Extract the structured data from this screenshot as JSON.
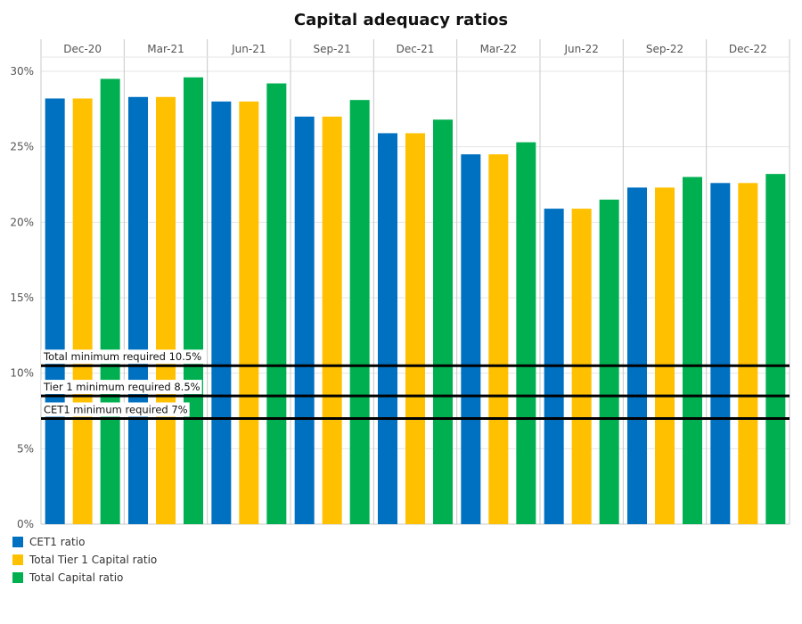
{
  "colors": {
    "cet1": "#0070c0",
    "tier1": "#ffc000",
    "total": "#00b050",
    "threshold": "#000000",
    "grid": "#e6e6e6",
    "panel_border": "#c8c8c8"
  },
  "chart_data": {
    "type": "bar",
    "title": "Capital adequacy ratios",
    "xlabel": "",
    "ylabel": "",
    "categories": [
      "Dec-20",
      "Mar-21",
      "Jun-21",
      "Sep-21",
      "Dec-21",
      "Mar-22",
      "Jun-22",
      "Sep-22",
      "Dec-22"
    ],
    "series": [
      {
        "name": "CET1 ratio",
        "color": "#0070c0",
        "values": [
          28.2,
          28.3,
          28.0,
          27.0,
          25.9,
          24.5,
          20.9,
          22.3,
          22.6
        ]
      },
      {
        "name": "Total Tier 1 Capital ratio",
        "color": "#ffc000",
        "values": [
          28.2,
          28.3,
          28.0,
          27.0,
          25.9,
          24.5,
          20.9,
          22.3,
          22.6
        ]
      },
      {
        "name": "Total Capital ratio",
        "color": "#00b050",
        "values": [
          29.5,
          29.6,
          29.2,
          28.1,
          26.8,
          25.3,
          21.5,
          23.0,
          23.2
        ]
      }
    ],
    "y_ticks": [
      "0%",
      "5%",
      "10%",
      "15%",
      "20%",
      "25%",
      "30%"
    ],
    "ylim": [
      0,
      30
    ],
    "reference_lines": [
      {
        "value": 10.5,
        "label": "Total minimum required 10.5%"
      },
      {
        "value": 8.5,
        "label": "Tier 1 minimum required 8.5%"
      },
      {
        "value": 7,
        "label": "CET1 minimum required 7%"
      }
    ],
    "grid": true,
    "legend_position": "bottom-left"
  }
}
